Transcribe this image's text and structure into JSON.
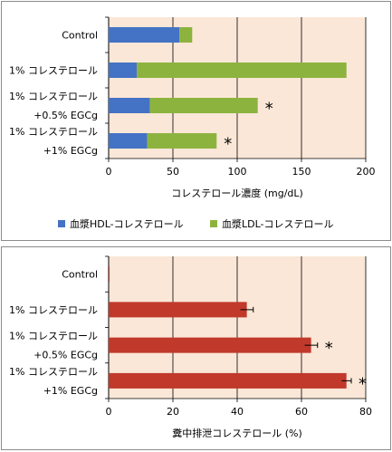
{
  "chart_data": [
    {
      "type": "bar",
      "orientation": "horizontal",
      "stacked": true,
      "categories": [
        [
          "Control"
        ],
        [
          "1% コレステロール"
        ],
        [
          "1% コレステロール",
          "+0.5% EGCg"
        ],
        [
          "1% コレステロール",
          "+1% EGCg"
        ]
      ],
      "series": [
        {
          "name": "血漿HDL-コレステロール",
          "color": "#4472c4",
          "values": [
            55,
            22,
            32,
            30
          ]
        },
        {
          "name": "血漿LDL-コレステロール",
          "color": "#8db33f",
          "values": [
            10,
            163,
            84,
            54
          ]
        }
      ],
      "significance": [
        "",
        "",
        "*",
        "*"
      ],
      "xlabel": "コレステロール濃度 (mg/dL)",
      "xlim": [
        0,
        200
      ],
      "xticks": [
        0,
        50,
        100,
        150,
        200
      ],
      "grid": true,
      "legend": "bottom",
      "plot_background": "#fbe7d7"
    },
    {
      "type": "bar",
      "orientation": "horizontal",
      "categories": [
        [
          "Control"
        ],
        [
          "1% コレステロール"
        ],
        [
          "1% コレステロール",
          "+0.5% EGCg"
        ],
        [
          "1% コレステロール",
          "+1% EGCg"
        ]
      ],
      "series": [
        {
          "color": "#c0392b",
          "values": [
            0.3,
            43,
            63,
            74
          ],
          "errors": [
            0,
            2,
            2,
            1.5
          ]
        }
      ],
      "significance": [
        "",
        "",
        "*",
        "*"
      ],
      "xlabel": "糞中排泄コレステロール (%)",
      "xlim": [
        0,
        80
      ],
      "xticks": [
        0,
        20,
        40,
        60,
        80
      ],
      "grid": true,
      "plot_background": "#fbe7d7"
    }
  ]
}
